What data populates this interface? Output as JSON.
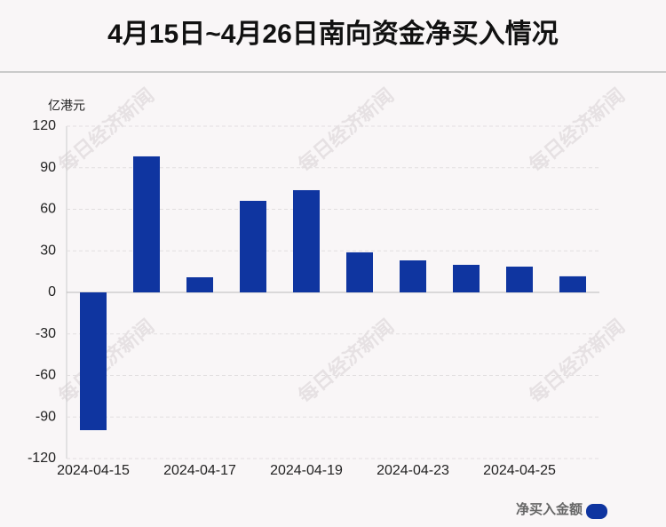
{
  "chart_data": {
    "type": "bar",
    "title": "4月15日~4月26日南向资金净买入情况",
    "unit": "亿港元",
    "watermark": "每日经济新闻",
    "categories": [
      "2024-04-15",
      null,
      "2024-04-17",
      null,
      "2024-04-19",
      null,
      "2024-04-23",
      null,
      "2024-04-25",
      null
    ],
    "series": [
      {
        "name": "净买入金额",
        "color": "#0f35a0",
        "values": [
          -99.5,
          98.2,
          10.9,
          66.1,
          73.8,
          28.9,
          23.1,
          19.9,
          18.6,
          11.6
        ]
      }
    ],
    "ylim": [
      -120,
      120
    ],
    "yticks": [
      -120,
      -90,
      -60,
      -30,
      0,
      30,
      60,
      90,
      120
    ],
    "grid": true
  }
}
